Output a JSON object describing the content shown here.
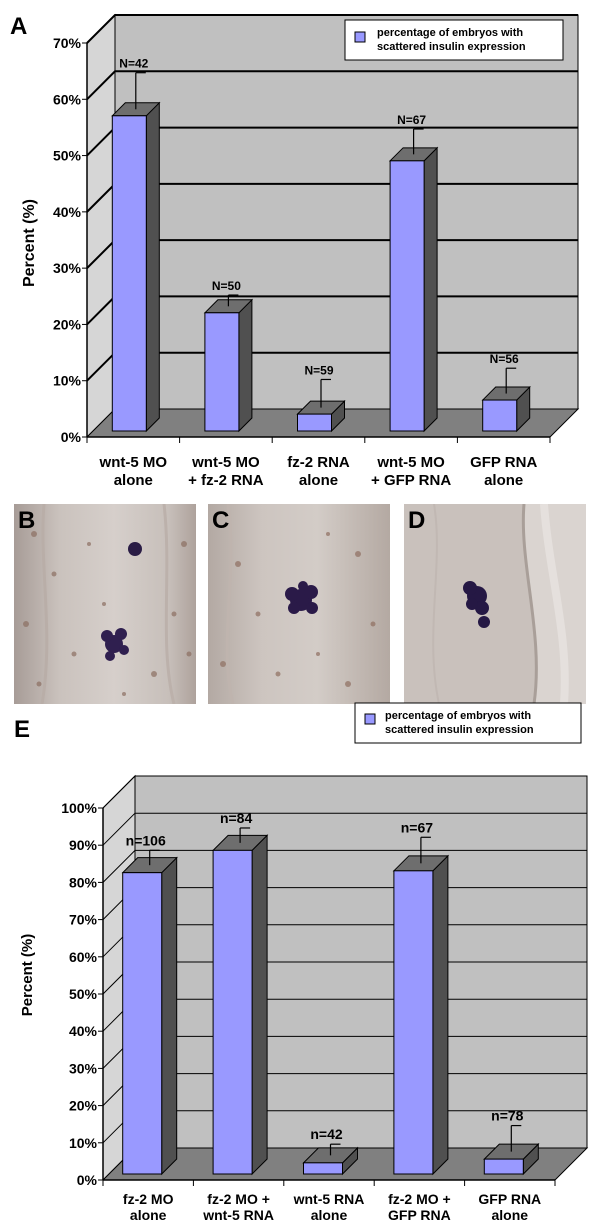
{
  "panel_a": {
    "letter": "A",
    "legend": [
      "percentage of embryos with",
      "scattered insulin expression"
    ],
    "categories": [
      [
        "wnt-5 MO",
        "alone"
      ],
      [
        "wnt-5 MO",
        "+ fz-2 RNA"
      ],
      [
        "fz-2 RNA",
        "alone"
      ],
      [
        "wnt-5 MO",
        "+ GFP RNA"
      ],
      [
        "GFP RNA",
        "alone"
      ]
    ]
  },
  "panel_e": {
    "letter": "E",
    "legend": [
      "percentage of embryos with",
      "scattered insulin expression"
    ],
    "categories": [
      [
        "fz-2 MO",
        "alone"
      ],
      [
        "fz-2 MO +",
        "wnt-5 RNA"
      ],
      [
        "wnt-5 RNA",
        "alone"
      ],
      [
        "fz-2 MO +",
        "GFP RNA"
      ],
      [
        "GFP RNA",
        "alone"
      ]
    ]
  },
  "micrographs": {
    "b": "B",
    "c": "C",
    "d": "D"
  },
  "chart_data": [
    {
      "type": "bar",
      "panel": "A",
      "ylabel": "Percent (%)",
      "ylim": [
        0,
        70
      ],
      "yticks": [
        "0%",
        "10%",
        "20%",
        "30%",
        "40%",
        "50%",
        "60%",
        "70%"
      ],
      "categories": [
        "wnt-5 MO alone",
        "wnt-5 MO + fz-2 RNA",
        "fz-2 RNA alone",
        "wnt-5 MO + GFP RNA",
        "GFP RNA alone"
      ],
      "values": [
        56,
        21,
        3,
        48,
        5.5
      ],
      "errors": [
        6.5,
        2,
        5,
        4.5,
        4.5
      ],
      "labels": [
        "N=42",
        "N=50",
        "N=59",
        "N=67",
        "N=56"
      ],
      "series": [
        {
          "name": "percentage of embryos with scattered insulin expression",
          "values": [
            56,
            21,
            3,
            48,
            5.5
          ]
        }
      ],
      "bar_color": "#9999ff",
      "wall_color": "#c0c0c0",
      "floor_color": "#808080",
      "grid": true,
      "legend_position": "top-right"
    },
    {
      "type": "bar",
      "panel": "E",
      "ylabel": "Percent (%)",
      "ylim": [
        0,
        100
      ],
      "yticks": [
        "0%",
        "10%",
        "20%",
        "30%",
        "40%",
        "50%",
        "60%",
        "70%",
        "80%",
        "90%",
        "100%"
      ],
      "categories": [
        "fz-2 MO alone",
        "fz-2 MO + wnt-5 RNA",
        "wnt-5 RNA alone",
        "fz-2 MO + GFP RNA",
        "GFP RNA alone"
      ],
      "values": [
        81,
        87,
        3,
        81.5,
        4
      ],
      "errors": [
        4,
        4,
        3,
        7,
        7
      ],
      "labels": [
        "n=106",
        "n=84",
        "n=42",
        "n=67",
        "n=78"
      ],
      "series": [
        {
          "name": "percentage of embryos with scattered insulin expression",
          "values": [
            81,
            87,
            3,
            81.5,
            4
          ]
        }
      ],
      "bar_color": "#9999ff",
      "wall_color": "#c0c0c0",
      "floor_color": "#808080",
      "grid": true,
      "legend_position": "top-right"
    }
  ]
}
